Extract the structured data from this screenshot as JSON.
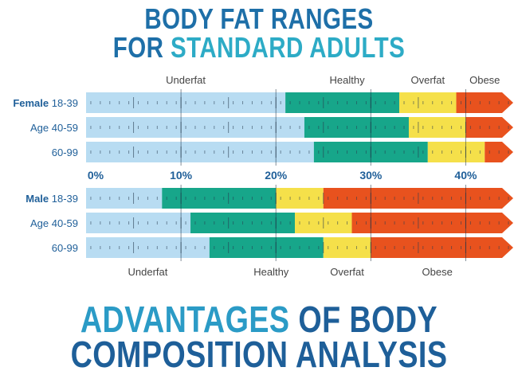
{
  "title": {
    "line1": "BODY FAT RANGES",
    "line2_part1": "FOR ",
    "line2_part2": "STANDARD ADULTS"
  },
  "bottom_title": {
    "line1_part1": "ADVANTAGES ",
    "line1_part2": "OF BODY",
    "line2": "COMPOSITION ANALYSIS"
  },
  "colors": {
    "underfat": "#b8dcf2",
    "healthy": "#17a68a",
    "overfat": "#f5e04a",
    "obese": "#e8521e",
    "text": "#1f5f99"
  },
  "chart_data": {
    "type": "bar",
    "orientation": "horizontal-stacked-ranges",
    "xlim": [
      0,
      45
    ],
    "ticks": [
      "0%",
      "10%",
      "20%",
      "30%",
      "40%"
    ],
    "tick_values": [
      0,
      10,
      20,
      30,
      40
    ],
    "categories": [
      "Underfat",
      "Healthy",
      "Overfat",
      "Obese"
    ],
    "groups": [
      {
        "name": "Female",
        "category_labels_position": "top",
        "rows": [
          {
            "label_bold": "Female",
            "label": "18-39",
            "bounds": [
              0,
              21,
              33,
              39,
              45
            ]
          },
          {
            "label_bold": "",
            "label": "Age 40-59",
            "bounds": [
              0,
              23,
              34,
              40,
              45
            ]
          },
          {
            "label_bold": "",
            "label": "60-99",
            "bounds": [
              0,
              24,
              36,
              42,
              45
            ]
          }
        ]
      },
      {
        "name": "Male",
        "category_labels_position": "bottom",
        "rows": [
          {
            "label_bold": "Male",
            "label": "18-39",
            "bounds": [
              0,
              8,
              20,
              25,
              45
            ]
          },
          {
            "label_bold": "",
            "label": "Age 40-59",
            "bounds": [
              0,
              11,
              22,
              28,
              45
            ]
          },
          {
            "label_bold": "",
            "label": "60-99",
            "bounds": [
              0,
              13,
              25,
              30,
              45
            ]
          }
        ]
      }
    ]
  }
}
